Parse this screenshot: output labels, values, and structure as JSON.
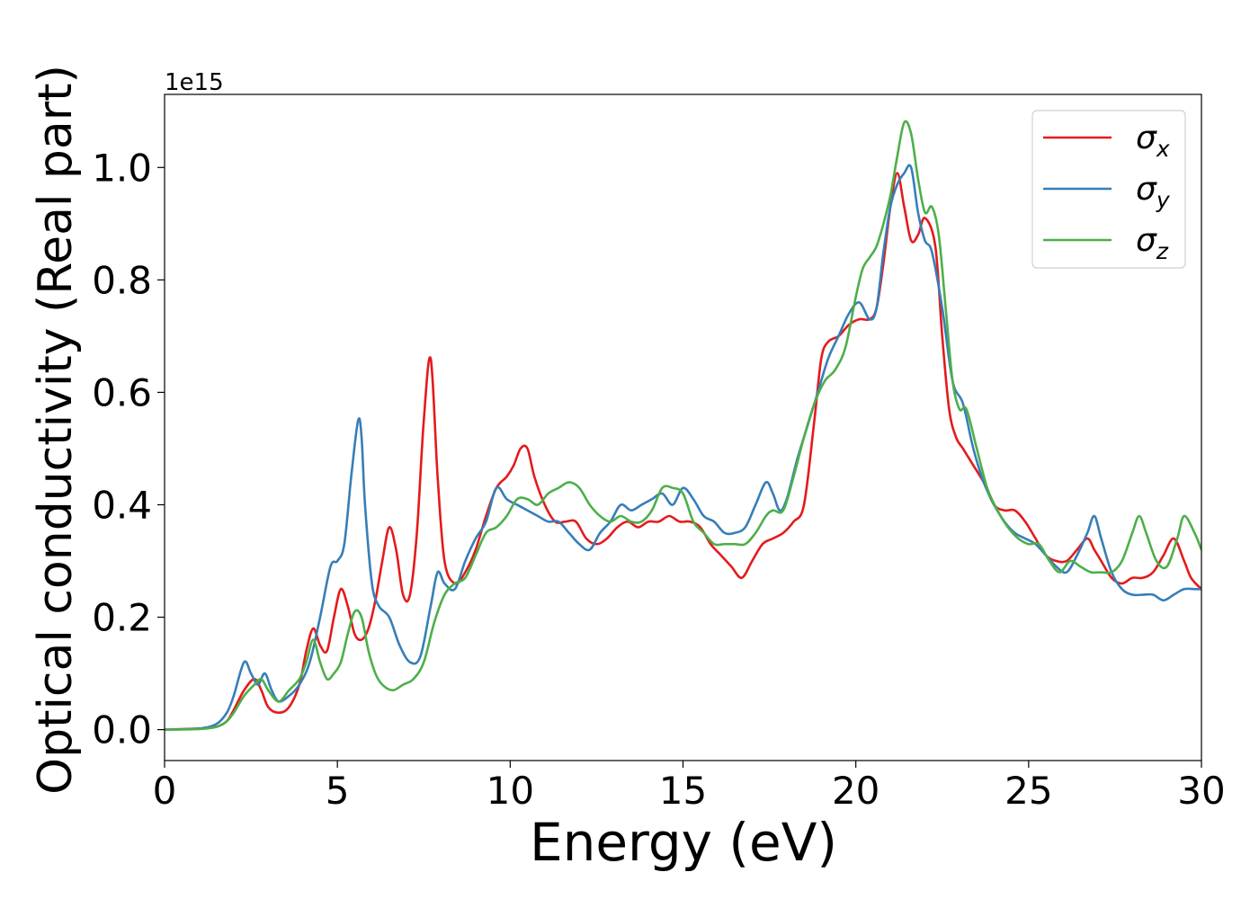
{
  "chart_data": {
    "type": "line",
    "title": "",
    "xlabel": "Energy (eV)",
    "ylabel": "Optical conductivity (Real part)",
    "y_offset_text": "1e15",
    "y_multiplier": 1000000000000000.0,
    "xlim": [
      0,
      30
    ],
    "ylim": [
      -0.055,
      1.13
    ],
    "xticks": [
      0,
      5,
      10,
      15,
      20,
      25,
      30
    ],
    "xtick_labels": [
      "0",
      "5",
      "10",
      "15",
      "20",
      "25",
      "30"
    ],
    "yticks": [
      0.0,
      0.2,
      0.4,
      0.6,
      0.8,
      1.0
    ],
    "ytick_labels": [
      "0.0",
      "0.2",
      "0.4",
      "0.6",
      "0.8",
      "1.0"
    ],
    "grid": false,
    "legend_position": "top-right",
    "series": [
      {
        "name": "σ_x",
        "legend_main": "σ",
        "legend_sub": "x",
        "color": "#e41a1c",
        "x": [
          0,
          1,
          1.5,
          1.8,
          2.0,
          2.3,
          2.6,
          2.8,
          3.0,
          3.3,
          3.6,
          3.9,
          4.1,
          4.3,
          4.5,
          4.7,
          4.9,
          5.1,
          5.3,
          5.5,
          5.7,
          5.9,
          6.1,
          6.3,
          6.5,
          6.7,
          6.9,
          7.1,
          7.3,
          7.5,
          7.7,
          7.9,
          8.1,
          8.4,
          8.7,
          9.0,
          9.3,
          9.6,
          9.9,
          10.1,
          10.3,
          10.5,
          10.7,
          11.0,
          11.3,
          11.6,
          11.9,
          12.2,
          12.5,
          12.8,
          13.1,
          13.4,
          13.7,
          14.0,
          14.3,
          14.6,
          14.9,
          15.2,
          15.5,
          15.8,
          16.1,
          16.4,
          16.7,
          17.0,
          17.3,
          17.6,
          17.9,
          18.2,
          18.5,
          18.8,
          19.0,
          19.2,
          19.5,
          19.8,
          20.1,
          20.4,
          20.6,
          20.8,
          21.0,
          21.2,
          21.4,
          21.6,
          21.8,
          22.0,
          22.3,
          22.5,
          22.7,
          22.9,
          23.1,
          23.4,
          23.7,
          24.0,
          24.3,
          24.6,
          24.9,
          25.2,
          25.5,
          25.8,
          26.1,
          26.4,
          26.7,
          26.9,
          27.1,
          27.4,
          27.7,
          28.0,
          28.3,
          28.6,
          28.9,
          29.2,
          29.5,
          29.7,
          30.0
        ],
        "y": [
          0,
          0.002,
          0.005,
          0.015,
          0.035,
          0.07,
          0.09,
          0.07,
          0.04,
          0.03,
          0.04,
          0.08,
          0.14,
          0.18,
          0.15,
          0.14,
          0.2,
          0.25,
          0.22,
          0.17,
          0.16,
          0.18,
          0.23,
          0.3,
          0.36,
          0.32,
          0.24,
          0.24,
          0.35,
          0.55,
          0.66,
          0.45,
          0.3,
          0.26,
          0.28,
          0.32,
          0.38,
          0.43,
          0.45,
          0.47,
          0.5,
          0.5,
          0.45,
          0.4,
          0.37,
          0.37,
          0.37,
          0.34,
          0.33,
          0.34,
          0.36,
          0.37,
          0.36,
          0.37,
          0.37,
          0.38,
          0.37,
          0.37,
          0.36,
          0.33,
          0.31,
          0.29,
          0.27,
          0.3,
          0.33,
          0.34,
          0.35,
          0.37,
          0.4,
          0.55,
          0.66,
          0.69,
          0.7,
          0.72,
          0.73,
          0.73,
          0.75,
          0.83,
          0.93,
          0.99,
          0.93,
          0.87,
          0.88,
          0.91,
          0.86,
          0.7,
          0.57,
          0.52,
          0.5,
          0.47,
          0.44,
          0.4,
          0.39,
          0.39,
          0.37,
          0.34,
          0.31,
          0.3,
          0.3,
          0.32,
          0.34,
          0.32,
          0.3,
          0.27,
          0.26,
          0.27,
          0.27,
          0.28,
          0.31,
          0.34,
          0.3,
          0.27,
          0.25
        ]
      },
      {
        "name": "σ_y",
        "legend_main": "σ",
        "legend_sub": "y",
        "color": "#377eb8",
        "x": [
          0,
          1,
          1.5,
          1.8,
          2.0,
          2.3,
          2.5,
          2.7,
          2.9,
          3.1,
          3.3,
          3.6,
          3.9,
          4.2,
          4.5,
          4.8,
          5.0,
          5.2,
          5.4,
          5.6,
          5.7,
          5.8,
          6.0,
          6.2,
          6.5,
          6.8,
          7.1,
          7.4,
          7.7,
          7.9,
          8.1,
          8.4,
          8.7,
          9.0,
          9.3,
          9.6,
          9.9,
          10.2,
          10.5,
          10.8,
          11.1,
          11.4,
          11.7,
          12.0,
          12.3,
          12.6,
          12.9,
          13.2,
          13.5,
          13.8,
          14.1,
          14.4,
          14.7,
          15.0,
          15.3,
          15.6,
          15.9,
          16.2,
          16.5,
          16.8,
          17.1,
          17.4,
          17.6,
          17.8,
          18.0,
          18.3,
          18.6,
          18.9,
          19.2,
          19.5,
          19.8,
          20.1,
          20.4,
          20.6,
          20.8,
          21.0,
          21.2,
          21.4,
          21.6,
          21.8,
          22.0,
          22.2,
          22.5,
          22.8,
          23.1,
          23.4,
          23.7,
          24.0,
          24.3,
          24.6,
          24.9,
          25.2,
          25.5,
          25.8,
          26.1,
          26.4,
          26.7,
          26.9,
          27.1,
          27.4,
          27.7,
          28.0,
          28.3,
          28.6,
          28.9,
          29.2,
          29.5,
          29.8,
          30.0
        ],
        "y": [
          0,
          0.002,
          0.01,
          0.03,
          0.06,
          0.12,
          0.1,
          0.08,
          0.1,
          0.07,
          0.05,
          0.06,
          0.08,
          0.12,
          0.2,
          0.29,
          0.3,
          0.33,
          0.45,
          0.55,
          0.52,
          0.4,
          0.26,
          0.22,
          0.2,
          0.15,
          0.12,
          0.13,
          0.22,
          0.28,
          0.26,
          0.25,
          0.3,
          0.34,
          0.37,
          0.43,
          0.41,
          0.4,
          0.39,
          0.38,
          0.37,
          0.37,
          0.35,
          0.33,
          0.32,
          0.35,
          0.37,
          0.4,
          0.39,
          0.4,
          0.41,
          0.42,
          0.4,
          0.43,
          0.41,
          0.38,
          0.37,
          0.35,
          0.35,
          0.36,
          0.4,
          0.44,
          0.42,
          0.39,
          0.41,
          0.48,
          0.54,
          0.6,
          0.66,
          0.7,
          0.74,
          0.76,
          0.73,
          0.75,
          0.85,
          0.93,
          0.97,
          0.99,
          1.0,
          0.92,
          0.87,
          0.85,
          0.75,
          0.62,
          0.58,
          0.5,
          0.44,
          0.4,
          0.37,
          0.35,
          0.34,
          0.33,
          0.31,
          0.29,
          0.28,
          0.31,
          0.35,
          0.38,
          0.34,
          0.28,
          0.25,
          0.24,
          0.24,
          0.24,
          0.23,
          0.24,
          0.25,
          0.25,
          0.25
        ]
      },
      {
        "name": "σ_z",
        "legend_main": "σ",
        "legend_sub": "z",
        "color": "#4daf4a",
        "x": [
          0,
          1,
          1.5,
          1.8,
          2.0,
          2.3,
          2.6,
          2.8,
          3.0,
          3.3,
          3.6,
          3.9,
          4.1,
          4.3,
          4.5,
          4.7,
          4.9,
          5.1,
          5.3,
          5.5,
          5.7,
          5.9,
          6.1,
          6.3,
          6.6,
          6.9,
          7.2,
          7.5,
          7.8,
          8.1,
          8.4,
          8.7,
          9.0,
          9.3,
          9.6,
          9.9,
          10.2,
          10.5,
          10.8,
          11.1,
          11.4,
          11.7,
          12.0,
          12.3,
          12.6,
          12.9,
          13.2,
          13.5,
          13.8,
          14.1,
          14.4,
          14.7,
          15.0,
          15.3,
          15.6,
          15.9,
          16.2,
          16.5,
          16.8,
          17.1,
          17.4,
          17.6,
          17.9,
          18.2,
          18.5,
          18.8,
          19.1,
          19.4,
          19.7,
          20.0,
          20.2,
          20.4,
          20.6,
          20.8,
          21.0,
          21.2,
          21.4,
          21.6,
          21.8,
          22.0,
          22.2,
          22.4,
          22.6,
          22.8,
          23.0,
          23.2,
          23.5,
          23.8,
          24.1,
          24.4,
          24.7,
          25.0,
          25.3,
          25.6,
          25.9,
          26.2,
          26.5,
          26.8,
          27.1,
          27.4,
          27.7,
          28.0,
          28.2,
          28.4,
          28.7,
          29.0,
          29.3,
          29.5,
          29.8,
          30.0
        ],
        "y": [
          0,
          0.001,
          0.005,
          0.015,
          0.03,
          0.06,
          0.08,
          0.09,
          0.07,
          0.05,
          0.07,
          0.09,
          0.12,
          0.16,
          0.12,
          0.09,
          0.1,
          0.12,
          0.17,
          0.21,
          0.2,
          0.14,
          0.1,
          0.08,
          0.07,
          0.08,
          0.09,
          0.12,
          0.19,
          0.24,
          0.26,
          0.27,
          0.31,
          0.35,
          0.36,
          0.38,
          0.41,
          0.41,
          0.4,
          0.42,
          0.43,
          0.44,
          0.43,
          0.4,
          0.38,
          0.37,
          0.38,
          0.37,
          0.37,
          0.39,
          0.43,
          0.43,
          0.42,
          0.37,
          0.35,
          0.33,
          0.33,
          0.33,
          0.33,
          0.35,
          0.38,
          0.39,
          0.39,
          0.45,
          0.52,
          0.58,
          0.62,
          0.64,
          0.68,
          0.77,
          0.82,
          0.84,
          0.86,
          0.9,
          0.95,
          1.02,
          1.08,
          1.06,
          0.98,
          0.92,
          0.93,
          0.88,
          0.75,
          0.62,
          0.57,
          0.57,
          0.5,
          0.43,
          0.39,
          0.36,
          0.34,
          0.33,
          0.33,
          0.3,
          0.28,
          0.3,
          0.29,
          0.28,
          0.28,
          0.28,
          0.3,
          0.35,
          0.38,
          0.35,
          0.3,
          0.29,
          0.34,
          0.38,
          0.35,
          0.32
        ]
      }
    ]
  }
}
